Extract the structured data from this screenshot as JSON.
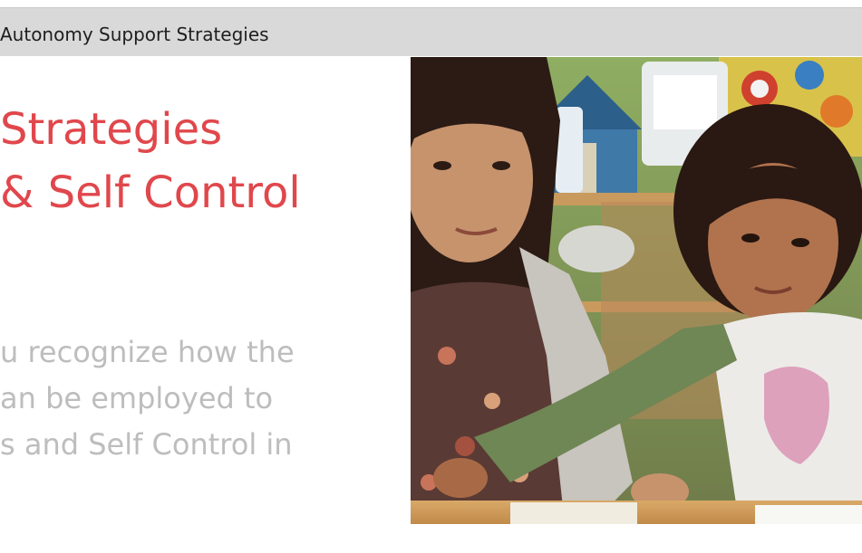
{
  "header": {
    "title": "Autonomy Support Strategies"
  },
  "slide": {
    "title_lines": [
      "Strategies",
      "& Self Control"
    ],
    "body_lines": [
      "u recognize how the",
      "an be employed to",
      "s and Self Control in"
    ]
  },
  "photo": {
    "subject": "photo-two-children-classroom"
  },
  "colors": {
    "header_bg": "#d9d9d9",
    "title": "#e0474c",
    "body": "#bdbdbd"
  }
}
